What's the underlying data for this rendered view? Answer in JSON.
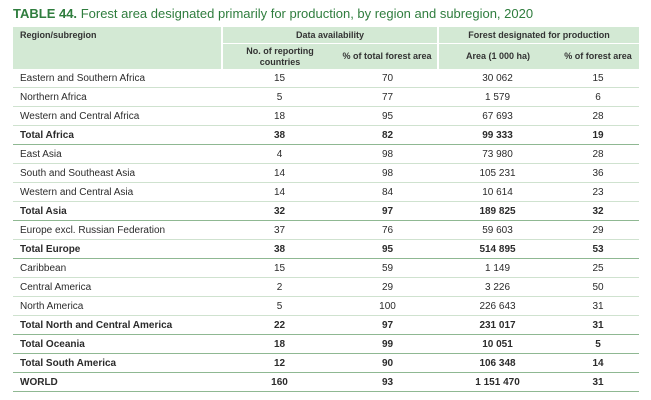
{
  "title": {
    "label": "TABLE 44.",
    "text": "Forest area designated primarily for production, by region and subregion, 2020"
  },
  "header": {
    "region": "Region/subregion",
    "group1": "Data availability",
    "group2": "Forest designated for production",
    "col_reporting": "No. of reporting countries",
    "col_pct_total": "% of total forest area",
    "col_area": "Area (1 000 ha)",
    "col_pct_forest": "% of forest area"
  },
  "rows": [
    {
      "name": "Eastern and Southern Africa",
      "reporting": "15",
      "pct_total": "70",
      "area": "30 062",
      "pct_forest": "15",
      "total": false
    },
    {
      "name": "Northern Africa",
      "reporting": "5",
      "pct_total": "77",
      "area": "1 579",
      "pct_forest": "6",
      "total": false
    },
    {
      "name": "Western and Central Africa",
      "reporting": "18",
      "pct_total": "95",
      "area": "67 693",
      "pct_forest": "28",
      "total": false
    },
    {
      "name": "Total Africa",
      "reporting": "38",
      "pct_total": "82",
      "area": "99 333",
      "pct_forest": "19",
      "total": true
    },
    {
      "name": "East Asia",
      "reporting": "4",
      "pct_total": "98",
      "area": "73 980",
      "pct_forest": "28",
      "total": false
    },
    {
      "name": "South and Southeast Asia",
      "reporting": "14",
      "pct_total": "98",
      "area": "105 231",
      "pct_forest": "36",
      "total": false
    },
    {
      "name": "Western and Central Asia",
      "reporting": "14",
      "pct_total": "84",
      "area": "10 614",
      "pct_forest": "23",
      "total": false
    },
    {
      "name": "Total Asia",
      "reporting": "32",
      "pct_total": "97",
      "area": "189 825",
      "pct_forest": "32",
      "total": true
    },
    {
      "name": "Europe excl. Russian Federation",
      "reporting": "37",
      "pct_total": "76",
      "area": "59 603",
      "pct_forest": "29",
      "total": false
    },
    {
      "name": "Total Europe",
      "reporting": "38",
      "pct_total": "95",
      "area": "514 895",
      "pct_forest": "53",
      "total": true
    },
    {
      "name": "Caribbean",
      "reporting": "15",
      "pct_total": "59",
      "area": "1 149",
      "pct_forest": "25",
      "total": false
    },
    {
      "name": "Central America",
      "reporting": "2",
      "pct_total": "29",
      "area": "3 226",
      "pct_forest": "50",
      "total": false
    },
    {
      "name": "North America",
      "reporting": "5",
      "pct_total": "100",
      "area": "226 643",
      "pct_forest": "31",
      "total": false
    },
    {
      "name": "Total North and Central America",
      "reporting": "22",
      "pct_total": "97",
      "area": "231 017",
      "pct_forest": "31",
      "total": true
    },
    {
      "name": "Total Oceania",
      "reporting": "18",
      "pct_total": "99",
      "area": "10 051",
      "pct_forest": "5",
      "total": true
    },
    {
      "name": "Total South America",
      "reporting": "12",
      "pct_total": "90",
      "area": "106 348",
      "pct_forest": "14",
      "total": true
    },
    {
      "name": "WORLD",
      "reporting": "160",
      "pct_total": "93",
      "area": "1 151 470",
      "pct_forest": "31",
      "total": true
    }
  ]
}
